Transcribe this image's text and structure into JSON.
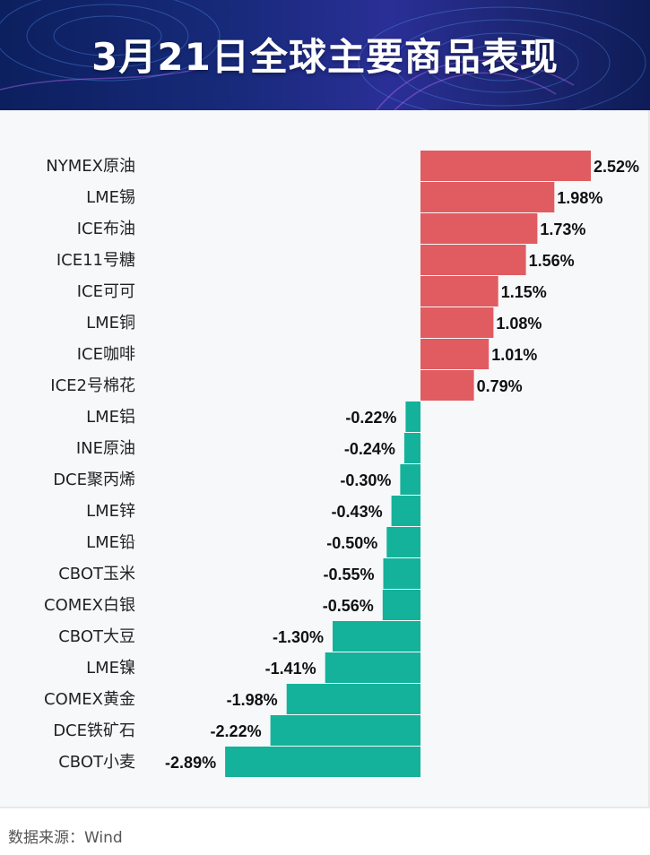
{
  "header": {
    "title": "3月21日全球主要商品表现"
  },
  "footer": {
    "source": "数据来源：Wind"
  },
  "colors": {
    "positive": "#e05c61",
    "negative": "#14b29a"
  },
  "chart_data": {
    "type": "bar",
    "orientation": "horizontal",
    "title": "3月21日全球主要商品表现",
    "xlabel": "",
    "ylabel": "",
    "grid": false,
    "legend": "none",
    "xlim": [
      -2.89,
      2.52
    ],
    "categories": [
      "NYMEX原油",
      "LME锡",
      "ICE布油",
      "ICE11号糖",
      "ICE可可",
      "LME铜",
      "ICE咖啡",
      "ICE2号棉花",
      "LME铝",
      "INE原油",
      "DCE聚丙烯",
      "LME锌",
      "LME铅",
      "CBOT玉米",
      "COMEX白银",
      "CBOT大豆",
      "LME镍",
      "COMEX黄金",
      "DCE铁矿石",
      "CBOT小麦"
    ],
    "values": [
      2.52,
      1.98,
      1.73,
      1.56,
      1.15,
      1.08,
      1.01,
      0.79,
      -0.22,
      -0.24,
      -0.3,
      -0.43,
      -0.5,
      -0.55,
      -0.56,
      -1.3,
      -1.41,
      -1.98,
      -2.22,
      -2.89
    ],
    "value_labels": [
      "2.52%",
      "1.98%",
      "1.73%",
      "1.56%",
      "1.15%",
      "1.08%",
      "1.01%",
      "0.79%",
      "-0.22%",
      "-0.24%",
      "-0.30%",
      "-0.43%",
      "-0.50%",
      "-0.55%",
      "-0.56%",
      "-1.30%",
      "-1.41%",
      "-1.98%",
      "-2.22%",
      "-2.89%"
    ]
  }
}
